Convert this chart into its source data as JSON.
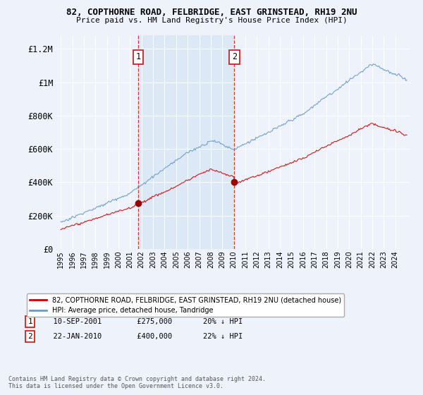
{
  "title1": "82, COPTHORNE ROAD, FELBRIDGE, EAST GRINSTEAD, RH19 2NU",
  "title2": "Price paid vs. HM Land Registry's House Price Index (HPI)",
  "background_color": "#eef2fb",
  "shade_color": "#dce8f5",
  "purchases": [
    {
      "label": "1",
      "date_num": 2001.71,
      "price": 275000,
      "note": "10-SEP-2001",
      "price_str": "£275,000",
      "pct": "20% ↓ HPI"
    },
    {
      "label": "2",
      "date_num": 2010.05,
      "price": 400000,
      "note": "22-JAN-2010",
      "price_str": "£400,000",
      "pct": "22% ↓ HPI"
    }
  ],
  "legend_line1": "82, COPTHORNE ROAD, FELBRIDGE, EAST GRINSTEAD, RH19 2NU (detached house)",
  "legend_line2": "HPI: Average price, detached house, Tandridge",
  "footnote1": "Contains HM Land Registry data © Crown copyright and database right 2024.",
  "footnote2": "This data is licensed under the Open Government Licence v3.0.",
  "ylabel_ticks": [
    "£0",
    "£200K",
    "£400K",
    "£600K",
    "£800K",
    "£1M",
    "£1.2M"
  ],
  "ytick_vals": [
    0,
    200000,
    400000,
    600000,
    800000,
    1000000,
    1200000
  ],
  "ylim": [
    0,
    1280000
  ],
  "xlim_start": 1994.5,
  "xlim_end": 2025.3,
  "red_line_color": "#cc0000",
  "blue_line_color": "#6699cc"
}
